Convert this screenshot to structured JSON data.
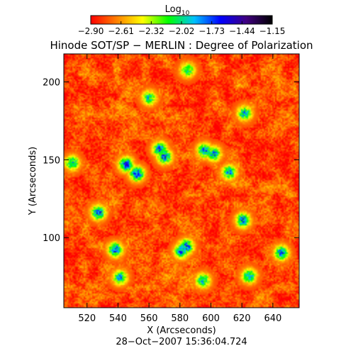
{
  "colorbar": {
    "label": "Log",
    "label_sub": "10",
    "tick_labels": [
      "−2.90",
      "−2.61",
      "−2.32",
      "−2.02",
      "−1.73",
      "−1.44",
      "−1.15"
    ],
    "colors": [
      "#ff0000",
      "#ff8000",
      "#ffff00",
      "#00ff00",
      "#00c0ff",
      "#0000ff",
      "#400080",
      "#000000"
    ]
  },
  "title": "Hinode SOT/SP − MERLIN : Degree of Polarization",
  "timestamp": "28−Oct−2007 15:36:04.724",
  "chart_data": {
    "type": "heatmap",
    "title": "Hinode SOT/SP − MERLIN : Degree of Polarization",
    "xlabel": "X (Arcseconds)",
    "ylabel": "Y (Arcseconds)",
    "xlim": [
      505,
      657
    ],
    "ylim": [
      55,
      218
    ],
    "x_ticks": [
      520,
      540,
      560,
      580,
      600,
      620,
      640
    ],
    "y_ticks": [
      100,
      150,
      200
    ],
    "x_tick_labels": [
      "520",
      "540",
      "560",
      "580",
      "600",
      "620",
      "640"
    ],
    "y_tick_labels": [
      "100",
      "150",
      "200"
    ],
    "color_scale": "log10",
    "value_range": [
      -2.9,
      -1.15
    ],
    "background_level": -2.75,
    "strong_features": [
      {
        "x": 527,
        "y": 116,
        "value": -1.55
      },
      {
        "x": 545,
        "y": 147,
        "value": -1.5
      },
      {
        "x": 552,
        "y": 141,
        "value": -1.45
      },
      {
        "x": 567,
        "y": 157,
        "value": -1.6
      },
      {
        "x": 570,
        "y": 152,
        "value": -1.55
      },
      {
        "x": 584,
        "y": 94,
        "value": -1.5
      },
      {
        "x": 581,
        "y": 91,
        "value": -1.6
      },
      {
        "x": 538,
        "y": 92,
        "value": -1.55
      },
      {
        "x": 596,
        "y": 156,
        "value": -1.6
      },
      {
        "x": 602,
        "y": 154,
        "value": -1.65
      },
      {
        "x": 612,
        "y": 142,
        "value": -1.7
      },
      {
        "x": 621,
        "y": 111,
        "value": -1.6
      },
      {
        "x": 622,
        "y": 180,
        "value": -1.75
      },
      {
        "x": 625,
        "y": 75,
        "value": -1.7
      },
      {
        "x": 646,
        "y": 90,
        "value": -1.6
      },
      {
        "x": 510,
        "y": 148,
        "value": -1.75
      },
      {
        "x": 541,
        "y": 74,
        "value": -1.75
      },
      {
        "x": 595,
        "y": 72,
        "value": -1.75
      },
      {
        "x": 560,
        "y": 190,
        "value": -1.85
      },
      {
        "x": 585,
        "y": 208,
        "value": -1.85
      }
    ]
  }
}
